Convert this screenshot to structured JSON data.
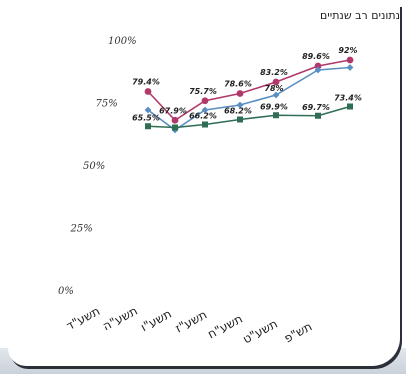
{
  "chart_data": {
    "type": "line",
    "title": "נתונים רב שנתיים",
    "categories": [
      "תשע\"ד",
      "תשע\"ה",
      "תשע\"ו",
      "תשע\"ז",
      "תשע\"ח",
      "תשע\"ט",
      "תש\"פ"
    ],
    "yticks": [
      "0%",
      "25%",
      "50%",
      "75%",
      "100%"
    ],
    "ylim": [
      0,
      100
    ],
    "grid": false,
    "series": [
      {
        "color": "#b0386b",
        "values": [
          79.4,
          67.9,
          75.7,
          78.6,
          83.2,
          89.6,
          92
        ]
      },
      {
        "color": "#5a8fc4",
        "values": [
          72,
          64,
          72,
          74,
          78,
          88,
          89
        ]
      },
      {
        "color": "#2f6e55",
        "values": [
          65.5,
          65,
          66.2,
          68.2,
          69.9,
          69.7,
          73.4
        ]
      }
    ],
    "data_labels": [
      {
        "text": "79.4%",
        "category": 0,
        "value": 79.4,
        "series": 0
      },
      {
        "text": "65.5%",
        "category": 0,
        "value": 65.5,
        "series": 2
      },
      {
        "text": "67.9%",
        "category": 1,
        "value": 67.9,
        "series": 0
      },
      {
        "text": "75.7%",
        "category": 2,
        "value": 75.7,
        "series": 0
      },
      {
        "text": "66.2%",
        "category": 2,
        "value": 66.2,
        "series": 2
      },
      {
        "text": "78.6%",
        "category": 3,
        "value": 78.6,
        "series": 0
      },
      {
        "text": "68.2%",
        "category": 3,
        "value": 68.2,
        "series": 2
      },
      {
        "text": "83.2%",
        "category": 4,
        "value": 83.2,
        "series": 0
      },
      {
        "text": "78%",
        "category": 4,
        "value": 78,
        "series": 1
      },
      {
        "text": "69.9%",
        "category": 4,
        "value": 69.9,
        "series": 2
      },
      {
        "text": "89.6%",
        "category": 5,
        "value": 89.6,
        "series": 0
      },
      {
        "text": "69.7%",
        "category": 5,
        "value": 69.7,
        "series": 2
      },
      {
        "text": "92%",
        "category": 6,
        "value": 92,
        "series": 0
      },
      {
        "text": "73.4%",
        "category": 6,
        "value": 73.4,
        "series": 2
      }
    ]
  }
}
